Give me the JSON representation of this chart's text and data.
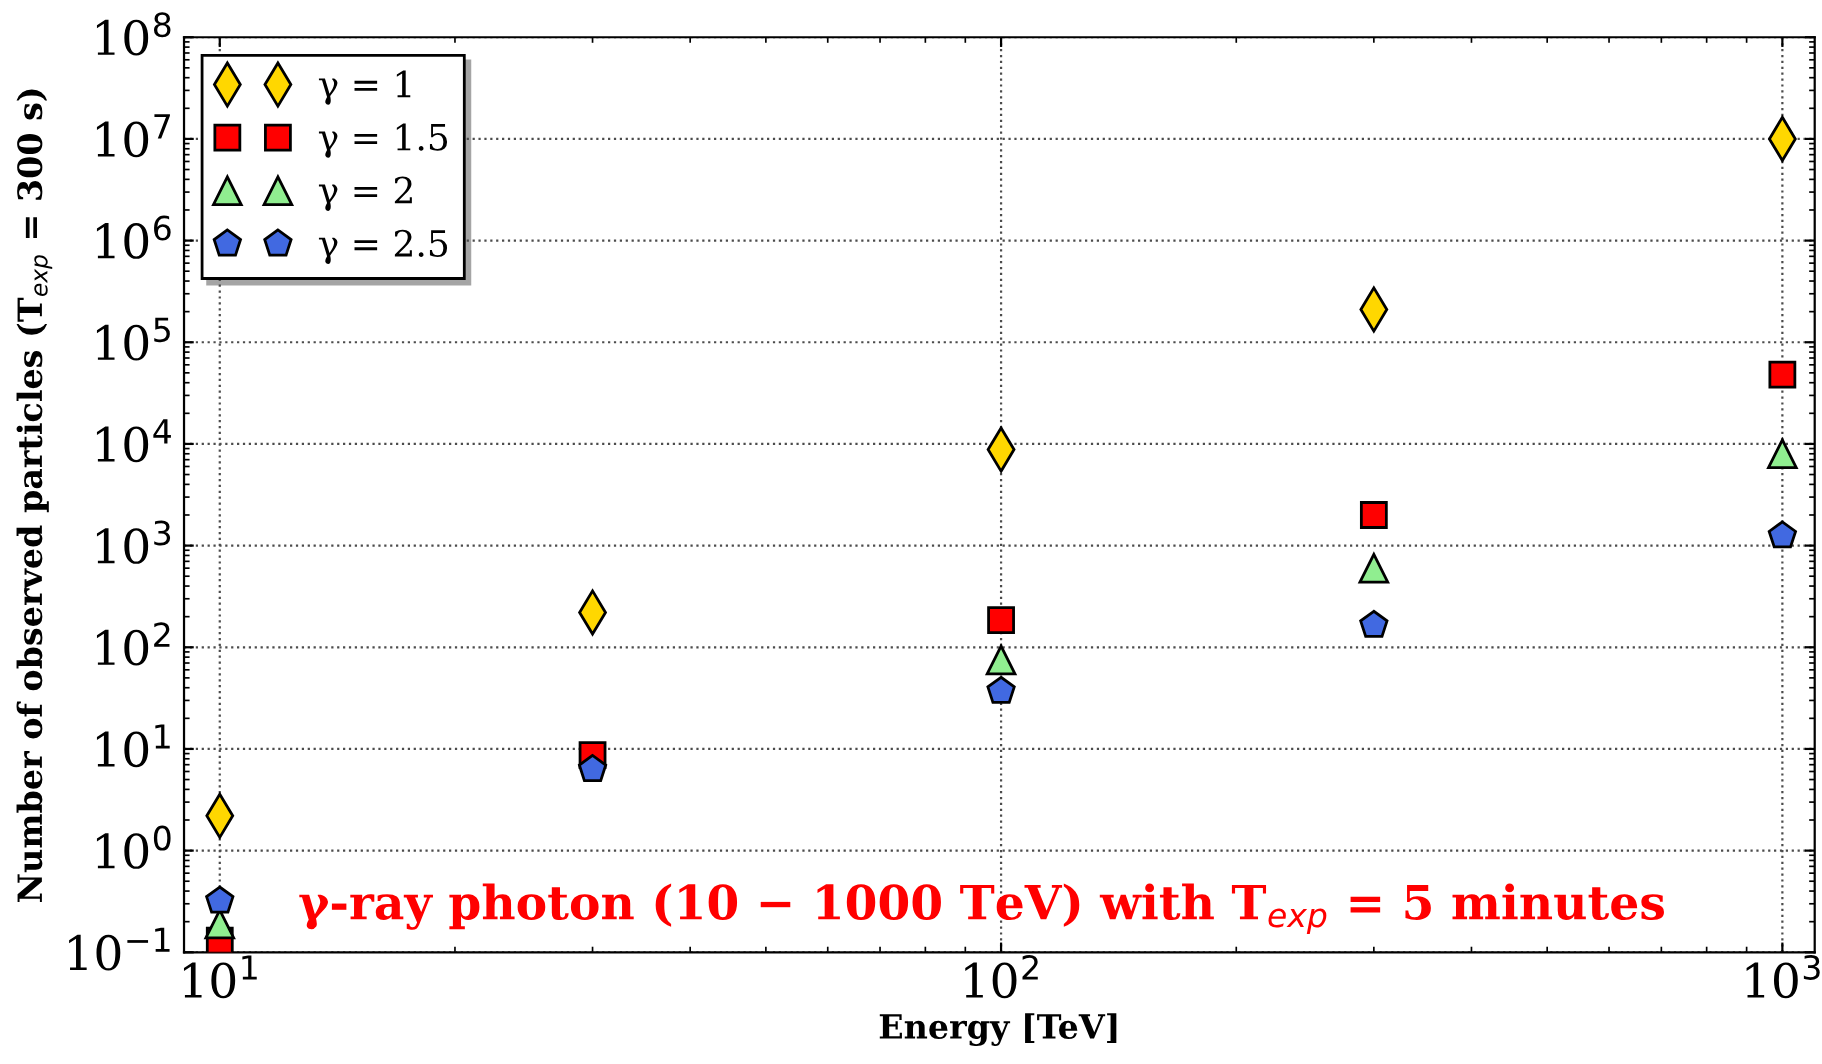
{
  "chart_data": {
    "type": "scatter",
    "xlabel": "Energy [TeV]",
    "ylabel": "Number of observed particles (T$_{exp}$ = 300 s)",
    "annotations": [
      "γ-ray photon (10 − 1000 TeV) with T$_{exp}$ = 5 minutes"
    ],
    "x": [
      10,
      30,
      100,
      300,
      1000
    ],
    "series": [
      {
        "name": "γ = 1",
        "color": "#ffd700",
        "marker": "diamond",
        "values": [
          2.2,
          220,
          8800,
          210000,
          10000000
        ]
      },
      {
        "name": "γ = 1.5",
        "color": "#ff0000",
        "marker": "square",
        "values": [
          0.13,
          8.7,
          185,
          2000,
          48000
        ]
      },
      {
        "name": "γ = 2",
        "color": "#90ee90",
        "marker": "triangle",
        "values": [
          0.19,
          null,
          75,
          600,
          8000
        ]
      },
      {
        "name": "γ = 2.5",
        "color": "#4169e1",
        "values": [
          0.32,
          6.3,
          37,
          165,
          1250
        ]
      }
    ],
    "log": "xy",
    "xlim": [
      9,
      1100
    ],
    "ylim": [
      0.1,
      100000000
    ],
    "xticks": [
      {
        "value": 10,
        "label": "10$^{1}$"
      },
      {
        "value": 100,
        "label": "10$^{2}$"
      },
      {
        "value": 1000,
        "label": "10$^{3}$"
      }
    ],
    "yticks": [
      {
        "value": 0.1,
        "label": "10$^{−1}$"
      },
      {
        "value": 1,
        "label": "10$^{0}$"
      },
      {
        "value": 10,
        "label": "10$^{1}$"
      },
      {
        "value": 100,
        "label": "10$^{2}$"
      },
      {
        "value": 1000,
        "label": "10$^{3}$"
      },
      {
        "value": 10000,
        "label": "10$^{4}$"
      },
      {
        "value": 100000,
        "label": "10$^{5}$"
      },
      {
        "value": 1000000,
        "label": "10$^{6}$"
      },
      {
        "value": 10000000,
        "label": "10$^{7}$"
      },
      {
        "value": 100000000,
        "label": "10$^{8}$"
      }
    ],
    "grid": true,
    "legend": "top left"
  }
}
